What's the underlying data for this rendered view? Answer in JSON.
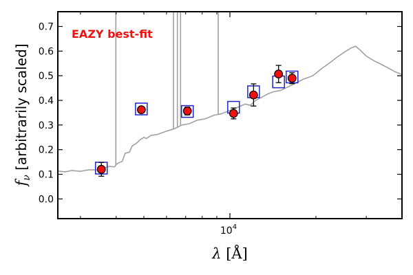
{
  "chart_data": {
    "type": "scatter",
    "title": "",
    "xlabel": "λ [Å]",
    "ylabel": "f_ν [arbitrarily scaled]",
    "ylabel_symbol": "f",
    "ylabel_sub": "ν",
    "ylabel_text": " [arbitrarily scaled]",
    "xscale": "log",
    "xlim": [
      2500,
      40000
    ],
    "ylim": [
      -0.08,
      0.76
    ],
    "xticks": [
      {
        "value": 10000,
        "base": "10",
        "exp": "4"
      }
    ],
    "yticks": [
      0.0,
      0.1,
      0.2,
      0.3,
      0.4,
      0.5,
      0.6,
      0.7
    ],
    "yticklabels": [
      "0.0",
      "0.1",
      "0.2",
      "0.3",
      "0.4",
      "0.5",
      "0.6",
      "0.7"
    ],
    "grid": false,
    "annotation": {
      "text": "EAZY best-fit",
      "color": "#ee1111"
    },
    "colors": {
      "sed": "#a0a0a0",
      "model_box": "#2222cc",
      "observed_fill": "#ee1111",
      "errorbar": "#000000"
    },
    "sed_curve": [
      [
        2500,
        0.113
      ],
      [
        2650,
        0.11
      ],
      [
        2800,
        0.115
      ],
      [
        3000,
        0.112
      ],
      [
        3200,
        0.118
      ],
      [
        3400,
        0.118
      ],
      [
        3600,
        0.125
      ],
      [
        3800,
        0.132
      ],
      [
        3950,
        0.13
      ],
      [
        4000,
        0.14
      ],
      [
        4100,
        0.148
      ],
      [
        4200,
        0.152
      ],
      [
        4300,
        0.185
      ],
      [
        4450,
        0.19
      ],
      [
        4550,
        0.215
      ],
      [
        4700,
        0.225
      ],
      [
        4850,
        0.24
      ],
      [
        5000,
        0.25
      ],
      [
        5100,
        0.245
      ],
      [
        5300,
        0.258
      ],
      [
        5600,
        0.262
      ],
      [
        6000,
        0.275
      ],
      [
        6400,
        0.285
      ],
      [
        6800,
        0.3
      ],
      [
        7200,
        0.305
      ],
      [
        7700,
        0.32
      ],
      [
        8200,
        0.325
      ],
      [
        8800,
        0.34
      ],
      [
        9300,
        0.345
      ],
      [
        9800,
        0.355
      ],
      [
        10300,
        0.365
      ],
      [
        10800,
        0.375
      ],
      [
        11300,
        0.385
      ],
      [
        11800,
        0.38
      ],
      [
        12300,
        0.4
      ],
      [
        12800,
        0.41
      ],
      [
        13500,
        0.425
      ],
      [
        14200,
        0.435
      ],
      [
        15000,
        0.44
      ],
      [
        16000,
        0.455
      ],
      [
        17000,
        0.47
      ],
      [
        18000,
        0.485
      ],
      [
        19500,
        0.5
      ],
      [
        21000,
        0.53
      ],
      [
        22500,
        0.555
      ],
      [
        24000,
        0.58
      ],
      [
        25500,
        0.6
      ],
      [
        26500,
        0.612
      ],
      [
        27500,
        0.62
      ],
      [
        28500,
        0.605
      ],
      [
        30000,
        0.58
      ],
      [
        32000,
        0.56
      ],
      [
        34000,
        0.545
      ],
      [
        36000,
        0.53
      ],
      [
        38000,
        0.515
      ],
      [
        40000,
        0.505
      ]
    ],
    "emission_lines": [
      {
        "x": 3990,
        "top": 0.76
      },
      {
        "x": 6350,
        "top": 0.76
      },
      {
        "x": 6550,
        "top": 0.76
      },
      {
        "x": 6720,
        "top": 0.76
      },
      {
        "x": 9100,
        "top": 0.76
      }
    ],
    "model_fluxes": [
      {
        "x": 3550,
        "y": 0.125
      },
      {
        "x": 4900,
        "y": 0.365
      },
      {
        "x": 7100,
        "y": 0.355
      },
      {
        "x": 10300,
        "y": 0.372
      },
      {
        "x": 12100,
        "y": 0.435
      },
      {
        "x": 14800,
        "y": 0.475
      },
      {
        "x": 16500,
        "y": 0.495
      }
    ],
    "observed_fluxes": [
      {
        "x": 3550,
        "y": 0.12,
        "err": 0.028
      },
      {
        "x": 4900,
        "y": 0.362,
        "err": 0.012
      },
      {
        "x": 7100,
        "y": 0.357,
        "err": 0.016
      },
      {
        "x": 10300,
        "y": 0.347,
        "err": 0.022
      },
      {
        "x": 12100,
        "y": 0.422,
        "err": 0.045
      },
      {
        "x": 14800,
        "y": 0.507,
        "err": 0.035
      },
      {
        "x": 16500,
        "y": 0.49,
        "err": 0.022
      }
    ]
  }
}
